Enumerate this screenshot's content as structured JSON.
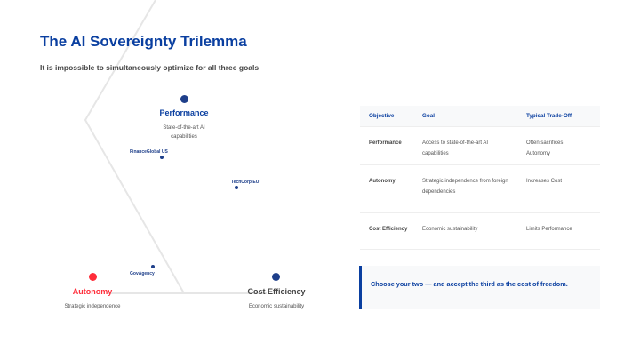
{
  "title": "The AI Sovereignty Trilemma",
  "subtitle": "It is impossible to simultaneously optimize for all three goals",
  "vertices": [
    {
      "label": "Performance",
      "desc": "State-of-the-art AI capabilities",
      "color": "#1e3f8a"
    },
    {
      "label": "Autonomy",
      "desc": "Strategic independence",
      "color": "#ff2d3a"
    },
    {
      "label": "Cost Efficiency",
      "desc": "Economic sustainability",
      "color": "#1e3f8a"
    }
  ],
  "points": [
    "FinanceGlobal US",
    "TechCorp EU",
    "GovAgency"
  ],
  "table": {
    "headers": [
      "Objective",
      "Goal",
      "Typical Trade-Off"
    ],
    "rows": [
      [
        "Performance",
        "Access to state-of-the-art AI capabilities",
        "Often sacrifices Autonomy"
      ],
      [
        "Autonomy",
        "Strategic independence from foreign dependencies",
        "Increases Cost"
      ],
      [
        "Cost Efficiency",
        "Economic sustainability",
        "Limits Performance"
      ]
    ]
  },
  "callout": "Choose your two — and accept the third as the cost of freedom."
}
